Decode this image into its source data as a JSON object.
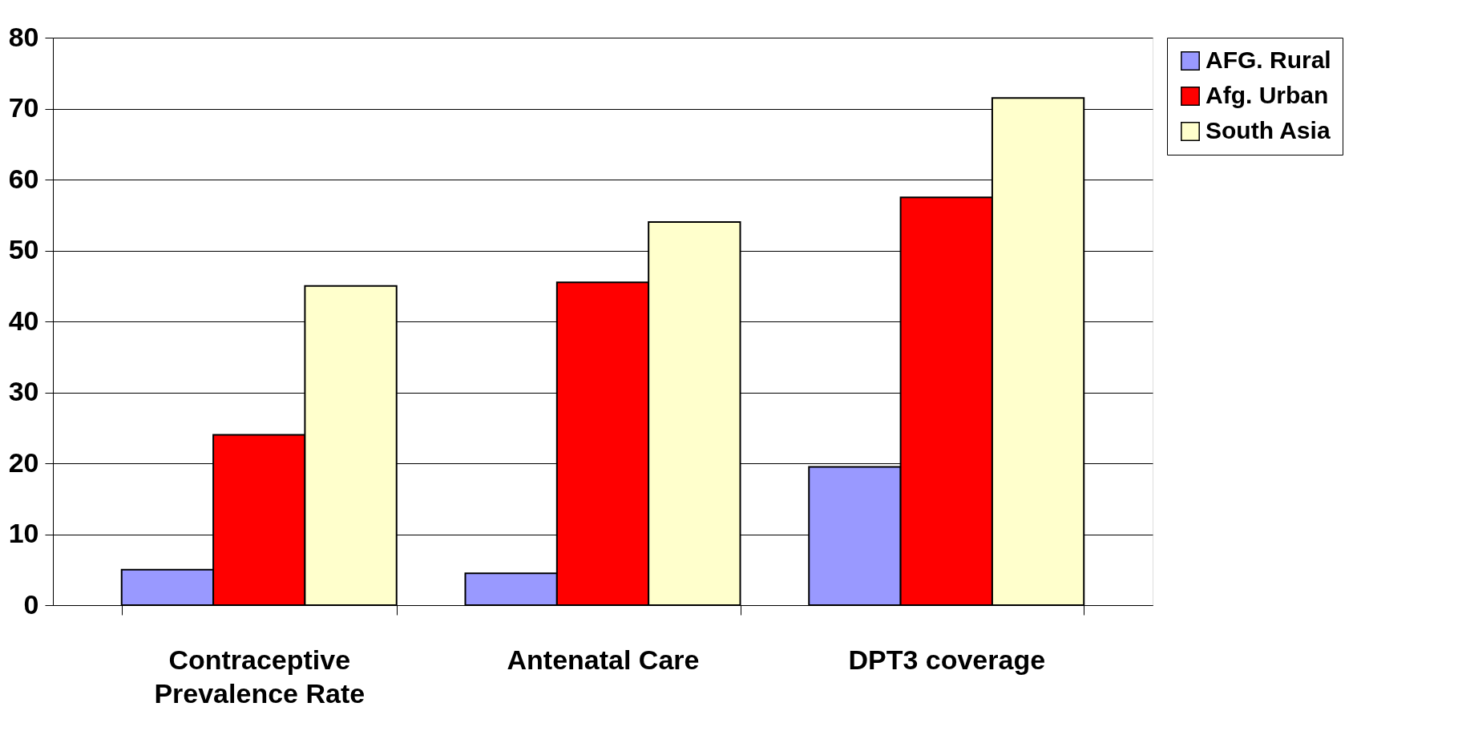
{
  "chart_data": {
    "type": "bar",
    "categories": [
      "Contraceptive Prevalence Rate",
      "Antenatal Care",
      "DPT3 coverage"
    ],
    "series": [
      {
        "name": "AFG. Rural",
        "color": "#9999ff",
        "values": [
          5,
          4.5,
          19.5
        ]
      },
      {
        "name": "Afg. Urban",
        "color": "#ff0000",
        "values": [
          24,
          45.5,
          57.5
        ]
      },
      {
        "name": "South Asia",
        "color": "#ffffcc",
        "values": [
          45,
          54,
          71.5
        ]
      }
    ],
    "ylim": [
      0,
      80
    ],
    "yticks": [
      0,
      10,
      20,
      30,
      40,
      50,
      60,
      70,
      80
    ],
    "grid": "y",
    "legend": "right"
  }
}
